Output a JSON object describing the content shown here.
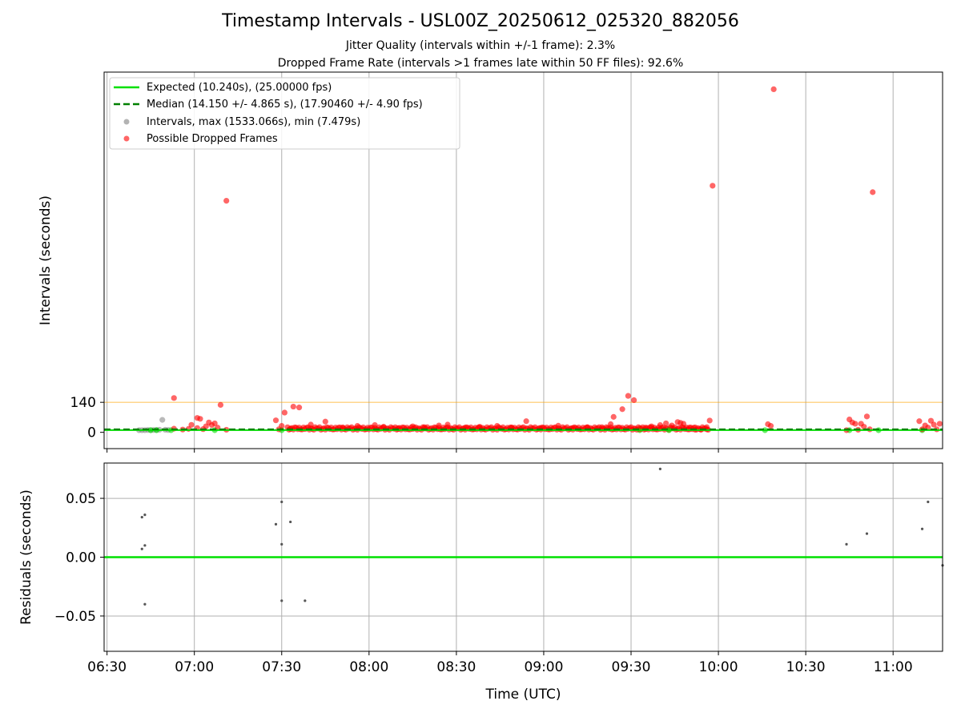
{
  "title": "Timestamp Intervals - USL00Z_20250612_025320_882056",
  "subtitle_1": "Jitter Quality (intervals within +/-1 frame): 2.3%",
  "subtitle_2": "Dropped Frame Rate (intervals >1 frames late within 50 FF files): 92.6%",
  "colors": {
    "expected": "#00e000",
    "median": "#008000",
    "intervals": "#808080",
    "dropped": "#ff0000",
    "threshold": "#ffa500",
    "grid": "#b0b0b0"
  },
  "chart_data": [
    {
      "type": "scatter",
      "name": "intervals",
      "ylabel": "Intervals (seconds)",
      "y_ticks": [
        0,
        140
      ],
      "y_tick_labels": [
        "0",
        "140"
      ],
      "ylim": [
        -76,
        1680
      ],
      "xlim": [
        "06:29",
        "11:17"
      ],
      "grid_x": true,
      "legend_position": "upper left",
      "threshold_line_y": 140,
      "expected_line_y": 10.24,
      "median_line_y": 14.15,
      "legend": [
        {
          "style": "solid-line",
          "label": "Expected (10.240s), (25.00000 fps)"
        },
        {
          "style": "dashed-line",
          "label": "Median (14.150 +/- 4.865 s), (17.90460 +/- 4.90 fps)"
        },
        {
          "style": "gray-dot",
          "label": "Intervals, max (1533.066s), min (7.479s)"
        },
        {
          "style": "red-dot",
          "label": "Possible Dropped Frames"
        }
      ],
      "gray_points": [
        {
          "t": "06:41",
          "v": 10
        },
        {
          "t": "06:42",
          "v": 10
        },
        {
          "t": "06:43",
          "v": 10
        },
        {
          "t": "06:44",
          "v": 11
        },
        {
          "t": "06:45",
          "v": 10
        },
        {
          "t": "06:46",
          "v": 11
        },
        {
          "t": "06:47",
          "v": 11
        },
        {
          "t": "06:48",
          "v": 12
        },
        {
          "t": "06:49",
          "v": 58
        },
        {
          "t": "06:50",
          "v": 12
        },
        {
          "t": "06:51",
          "v": 11
        }
      ],
      "green_points": [
        {
          "t": "06:45",
          "v": 10
        },
        {
          "t": "06:47",
          "v": 10
        },
        {
          "t": "06:52",
          "v": 10
        },
        {
          "t": "07:07",
          "v": 10
        },
        {
          "t": "07:30",
          "v": 10
        },
        {
          "t": "09:33",
          "v": 10
        },
        {
          "t": "09:43",
          "v": 10
        },
        {
          "t": "10:16",
          "v": 10
        },
        {
          "t": "10:45",
          "v": 10
        },
        {
          "t": "10:55",
          "v": 10
        },
        {
          "t": "11:10",
          "v": 10
        }
      ],
      "dropped_points": [
        {
          "t": "06:53",
          "v": 17
        },
        {
          "t": "06:53",
          "v": 160
        },
        {
          "t": "06:56",
          "v": 13
        },
        {
          "t": "06:58",
          "v": 16
        },
        {
          "t": "06:59",
          "v": 35
        },
        {
          "t": "07:01",
          "v": 20
        },
        {
          "t": "07:01",
          "v": 67
        },
        {
          "t": "07:02",
          "v": 63
        },
        {
          "t": "07:03",
          "v": 15
        },
        {
          "t": "07:04",
          "v": 28
        },
        {
          "t": "07:05",
          "v": 46
        },
        {
          "t": "07:06",
          "v": 34
        },
        {
          "t": "07:07",
          "v": 42
        },
        {
          "t": "07:08",
          "v": 22
        },
        {
          "t": "07:09",
          "v": 128
        },
        {
          "t": "07:11",
          "v": 1080
        },
        {
          "t": "07:11",
          "v": 12
        },
        {
          "t": "07:28",
          "v": 56
        },
        {
          "t": "07:29",
          "v": 14
        },
        {
          "t": "07:30",
          "v": 30
        },
        {
          "t": "07:31",
          "v": 92
        },
        {
          "t": "07:33",
          "v": 17
        },
        {
          "t": "07:34",
          "v": 120
        },
        {
          "t": "07:36",
          "v": 116
        },
        {
          "t": "07:40",
          "v": 36
        },
        {
          "t": "07:45",
          "v": 50
        },
        {
          "t": "07:51",
          "v": 23
        },
        {
          "t": "07:56",
          "v": 30
        },
        {
          "t": "08:02",
          "v": 34
        },
        {
          "t": "08:05",
          "v": 26
        },
        {
          "t": "08:10",
          "v": 20
        },
        {
          "t": "08:15",
          "v": 28
        },
        {
          "t": "08:19",
          "v": 24
        },
        {
          "t": "08:24",
          "v": 32
        },
        {
          "t": "08:27",
          "v": 36
        },
        {
          "t": "08:33",
          "v": 22
        },
        {
          "t": "08:38",
          "v": 26
        },
        {
          "t": "08:44",
          "v": 30
        },
        {
          "t": "08:49",
          "v": 22
        },
        {
          "t": "08:54",
          "v": 52
        },
        {
          "t": "08:59",
          "v": 20
        },
        {
          "t": "09:05",
          "v": 31
        },
        {
          "t": "09:10",
          "v": 20
        },
        {
          "t": "09:15",
          "v": 24
        },
        {
          "t": "09:20",
          "v": 24
        },
        {
          "t": "09:23",
          "v": 38
        },
        {
          "t": "09:24",
          "v": 72
        },
        {
          "t": "09:27",
          "v": 108
        },
        {
          "t": "09:29",
          "v": 170
        },
        {
          "t": "09:31",
          "v": 150
        },
        {
          "t": "09:33",
          "v": 14
        },
        {
          "t": "09:35",
          "v": 22
        },
        {
          "t": "09:37",
          "v": 28
        },
        {
          "t": "09:40",
          "v": 34
        },
        {
          "t": "09:42",
          "v": 42
        },
        {
          "t": "09:44",
          "v": 32
        },
        {
          "t": "09:46",
          "v": 48
        },
        {
          "t": "09:47",
          "v": 44
        },
        {
          "t": "09:48",
          "v": 40
        },
        {
          "t": "09:50",
          "v": 22
        },
        {
          "t": "09:52",
          "v": 12
        },
        {
          "t": "09:54",
          "v": 14
        },
        {
          "t": "09:56",
          "v": 14
        },
        {
          "t": "09:57",
          "v": 55
        },
        {
          "t": "09:58",
          "v": 1150
        },
        {
          "t": "10:17",
          "v": 38
        },
        {
          "t": "10:18",
          "v": 30
        },
        {
          "t": "10:19",
          "v": 1600
        },
        {
          "t": "10:44",
          "v": 10
        },
        {
          "t": "10:45",
          "v": 60
        },
        {
          "t": "10:46",
          "v": 46
        },
        {
          "t": "10:47",
          "v": 40
        },
        {
          "t": "10:48",
          "v": 12
        },
        {
          "t": "10:49",
          "v": 40
        },
        {
          "t": "10:50",
          "v": 26
        },
        {
          "t": "10:51",
          "v": 74
        },
        {
          "t": "10:52",
          "v": 14
        },
        {
          "t": "10:53",
          "v": 1120
        },
        {
          "t": "11:09",
          "v": 52
        },
        {
          "t": "11:10",
          "v": 14
        },
        {
          "t": "11:11",
          "v": 32
        },
        {
          "t": "11:12",
          "v": 22
        },
        {
          "t": "11:13",
          "v": 54
        },
        {
          "t": "11:14",
          "v": 36
        },
        {
          "t": "11:15",
          "v": 14
        },
        {
          "t": "11:16",
          "v": 40
        }
      ],
      "dense_band": {
        "from": "07:32",
        "to": "09:56",
        "v_min": 12,
        "v_max": 24
      }
    },
    {
      "type": "scatter",
      "name": "residuals",
      "ylabel": "Residuals (seconds)",
      "xlabel": "Time (UTC)",
      "ylim": [
        -0.08,
        0.08
      ],
      "y_ticks": [
        -0.05,
        0,
        0.05
      ],
      "y_tick_labels": [
        "−0.05",
        "0.00",
        "0.05"
      ],
      "xlim": [
        "06:29",
        "11:17"
      ],
      "x_ticks": [
        "06:30",
        "07:00",
        "07:30",
        "08:00",
        "08:30",
        "09:00",
        "09:30",
        "10:00",
        "10:30",
        "11:00"
      ],
      "grid": true,
      "zero_line_y": 0,
      "points": [
        {
          "t": "06:42",
          "v": 0.034
        },
        {
          "t": "06:43",
          "v": 0.036
        },
        {
          "t": "06:42",
          "v": 0.007
        },
        {
          "t": "06:43",
          "v": 0.01
        },
        {
          "t": "06:43",
          "v": -0.04
        },
        {
          "t": "07:28",
          "v": 0.028
        },
        {
          "t": "07:30",
          "v": 0.047
        },
        {
          "t": "07:30",
          "v": 0.011
        },
        {
          "t": "07:30",
          "v": -0.037
        },
        {
          "t": "07:33",
          "v": 0.03
        },
        {
          "t": "07:38",
          "v": -0.037
        },
        {
          "t": "09:40",
          "v": 0.075
        },
        {
          "t": "10:44",
          "v": 0.011
        },
        {
          "t": "10:51",
          "v": 0.02
        },
        {
          "t": "11:10",
          "v": 0.024
        },
        {
          "t": "11:12",
          "v": 0.047
        },
        {
          "t": "11:17",
          "v": -0.007
        }
      ]
    }
  ]
}
